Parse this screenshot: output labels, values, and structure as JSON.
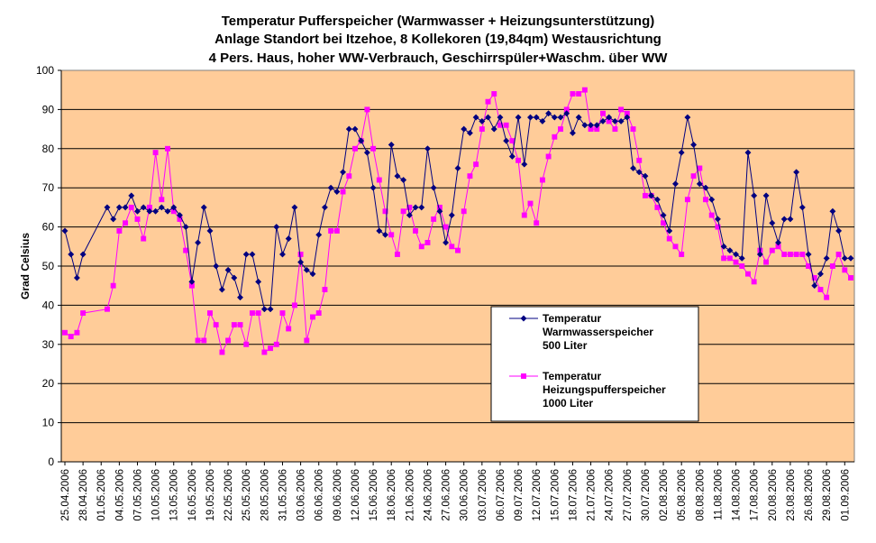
{
  "chart_data": {
    "type": "line",
    "title": [
      "Temperatur Pufferspeicher (Warmwasser + Heizungsunterstützung)",
      "Anlage Standort bei Itzehoe, 8 Kollekoren (19,84qm) Westausrichtung",
      "4 Pers. Haus, hoher WW-Verbrauch, Geschirrspüler+Waschm. über WW"
    ],
    "ylabel": "Grad Celsius",
    "xlabel": "",
    "ylim": [
      0,
      100
    ],
    "yticks": [
      0,
      10,
      20,
      30,
      40,
      50,
      60,
      70,
      80,
      90,
      100
    ],
    "grid": true,
    "legend_position": "lower-center",
    "x_tick_labels": [
      "25.04.2006",
      "28.04.2006",
      "01.05.2006",
      "04.05.2006",
      "07.05.2006",
      "10.05.2006",
      "13.05.2006",
      "16.05.2006",
      "19.05.2006",
      "22.05.2006",
      "25.05.2006",
      "28.05.2006",
      "31.05.2006",
      "03.06.2006",
      "06.06.2006",
      "09.06.2006",
      "12.06.2006",
      "15.06.2006",
      "18.06.2006",
      "21.06.2006",
      "24.06.2006",
      "27.06.2006",
      "30.06.2006",
      "03.07.2006",
      "06.07.2006",
      "09.07.2006",
      "12.07.2006",
      "15.07.2006",
      "18.07.2006",
      "21.07.2006",
      "24.07.2006",
      "27.07.2006",
      "30.07.2006",
      "02.08.2006",
      "05.08.2006",
      "08.08.2006",
      "11.08.2006",
      "14.08.2006",
      "17.08.2006",
      "20.08.2006",
      "23.08.2006",
      "26.08.2006",
      "29.08.2006",
      "01.09.2006"
    ],
    "x_start": "25.04.2006",
    "x_end": "02.09.2006",
    "series": [
      {
        "name": "Temperatur Warmwasserspeicher 500 Liter",
        "color": "#000080",
        "marker": "diamond",
        "points": [
          [
            "25.04.2006",
            59
          ],
          [
            "26.04.2006",
            53
          ],
          [
            "27.04.2006",
            47
          ],
          [
            "28.04.2006",
            53
          ],
          [
            "02.05.2006",
            65
          ],
          [
            "03.05.2006",
            62
          ],
          [
            "04.05.2006",
            65
          ],
          [
            "05.05.2006",
            65
          ],
          [
            "06.05.2006",
            68
          ],
          [
            "07.05.2006",
            64
          ],
          [
            "08.05.2006",
            65
          ],
          [
            "09.05.2006",
            64
          ],
          [
            "10.05.2006",
            64
          ],
          [
            "11.05.2006",
            65
          ],
          [
            "12.05.2006",
            64
          ],
          [
            "13.05.2006",
            65
          ],
          [
            "14.05.2006",
            63
          ],
          [
            "15.05.2006",
            60
          ],
          [
            "16.05.2006",
            46
          ],
          [
            "17.05.2006",
            56
          ],
          [
            "18.05.2006",
            65
          ],
          [
            "19.05.2006",
            59
          ],
          [
            "20.05.2006",
            50
          ],
          [
            "21.05.2006",
            44
          ],
          [
            "22.05.2006",
            49
          ],
          [
            "23.05.2006",
            47
          ],
          [
            "24.05.2006",
            42
          ],
          [
            "25.05.2006",
            53
          ],
          [
            "26.05.2006",
            53
          ],
          [
            "27.05.2006",
            46
          ],
          [
            "28.05.2006",
            39
          ],
          [
            "29.05.2006",
            39
          ],
          [
            "30.05.2006",
            60
          ],
          [
            "31.05.2006",
            53
          ],
          [
            "01.06.2006",
            57
          ],
          [
            "02.06.2006",
            65
          ],
          [
            "03.06.2006",
            51
          ],
          [
            "04.06.2006",
            49
          ],
          [
            "05.06.2006",
            48
          ],
          [
            "06.06.2006",
            58
          ],
          [
            "07.06.2006",
            65
          ],
          [
            "08.06.2006",
            70
          ],
          [
            "09.06.2006",
            69
          ],
          [
            "10.06.2006",
            74
          ],
          [
            "11.06.2006",
            85
          ],
          [
            "12.06.2006",
            85
          ],
          [
            "13.06.2006",
            82
          ],
          [
            "14.06.2006",
            79
          ],
          [
            "15.06.2006",
            70
          ],
          [
            "16.06.2006",
            59
          ],
          [
            "17.06.2006",
            58
          ],
          [
            "18.06.2006",
            81
          ],
          [
            "19.06.2006",
            73
          ],
          [
            "20.06.2006",
            72
          ],
          [
            "21.06.2006",
            63
          ],
          [
            "22.06.2006",
            65
          ],
          [
            "23.06.2006",
            65
          ],
          [
            "24.06.2006",
            80
          ],
          [
            "25.06.2006",
            70
          ],
          [
            "26.06.2006",
            64
          ],
          [
            "27.06.2006",
            56
          ],
          [
            "28.06.2006",
            63
          ],
          [
            "29.06.2006",
            75
          ],
          [
            "30.06.2006",
            85
          ],
          [
            "01.07.2006",
            84
          ],
          [
            "02.07.2006",
            88
          ],
          [
            "03.07.2006",
            87
          ],
          [
            "04.07.2006",
            88
          ],
          [
            "05.07.2006",
            85
          ],
          [
            "06.07.2006",
            88
          ],
          [
            "07.07.2006",
            82
          ],
          [
            "08.07.2006",
            78
          ],
          [
            "09.07.2006",
            88
          ],
          [
            "10.07.2006",
            76
          ],
          [
            "11.07.2006",
            88
          ],
          [
            "12.07.2006",
            88
          ],
          [
            "13.07.2006",
            87
          ],
          [
            "14.07.2006",
            89
          ],
          [
            "15.07.2006",
            88
          ],
          [
            "16.07.2006",
            88
          ],
          [
            "17.07.2006",
            89
          ],
          [
            "18.07.2006",
            84
          ],
          [
            "19.07.2006",
            88
          ],
          [
            "20.07.2006",
            86
          ],
          [
            "21.07.2006",
            86
          ],
          [
            "22.07.2006",
            86
          ],
          [
            "23.07.2006",
            87
          ],
          [
            "24.07.2006",
            88
          ],
          [
            "25.07.2006",
            87
          ],
          [
            "26.07.2006",
            87
          ],
          [
            "27.07.2006",
            88
          ],
          [
            "28.07.2006",
            75
          ],
          [
            "29.07.2006",
            74
          ],
          [
            "30.07.2006",
            73
          ],
          [
            "31.07.2006",
            68
          ],
          [
            "01.08.2006",
            67
          ],
          [
            "02.08.2006",
            63
          ],
          [
            "03.08.2006",
            59
          ],
          [
            "04.08.2006",
            71
          ],
          [
            "05.08.2006",
            79
          ],
          [
            "06.08.2006",
            88
          ],
          [
            "07.08.2006",
            81
          ],
          [
            "08.08.2006",
            71
          ],
          [
            "09.08.2006",
            70
          ],
          [
            "10.08.2006",
            67
          ],
          [
            "11.08.2006",
            62
          ],
          [
            "12.08.2006",
            55
          ],
          [
            "13.08.2006",
            54
          ],
          [
            "14.08.2006",
            53
          ],
          [
            "15.08.2006",
            52
          ],
          [
            "16.08.2006",
            79
          ],
          [
            "17.08.2006",
            68
          ],
          [
            "18.08.2006",
            53
          ],
          [
            "19.08.2006",
            68
          ],
          [
            "20.08.2006",
            61
          ],
          [
            "21.08.2006",
            56
          ],
          [
            "22.08.2006",
            62
          ],
          [
            "23.08.2006",
            62
          ],
          [
            "24.08.2006",
            74
          ],
          [
            "25.08.2006",
            65
          ],
          [
            "26.08.2006",
            53
          ],
          [
            "27.08.2006",
            45
          ],
          [
            "28.08.2006",
            48
          ],
          [
            "29.08.2006",
            52
          ],
          [
            "30.08.2006",
            64
          ],
          [
            "31.08.2006",
            59
          ],
          [
            "01.09.2006",
            52
          ],
          [
            "02.09.2006",
            52
          ]
        ]
      },
      {
        "name": "Temperatur Heizungspufferspeicher 1000 Liter",
        "color": "#FF00FF",
        "marker": "square",
        "points": [
          [
            "25.04.2006",
            33
          ],
          [
            "26.04.2006",
            32
          ],
          [
            "27.04.2006",
            33
          ],
          [
            "28.04.2006",
            38
          ],
          [
            "02.05.2006",
            39
          ],
          [
            "03.05.2006",
            45
          ],
          [
            "04.05.2006",
            59
          ],
          [
            "05.05.2006",
            61
          ],
          [
            "06.05.2006",
            65
          ],
          [
            "07.05.2006",
            62
          ],
          [
            "08.05.2006",
            57
          ],
          [
            "09.05.2006",
            65
          ],
          [
            "10.05.2006",
            79
          ],
          [
            "11.05.2006",
            67
          ],
          [
            "12.05.2006",
            80
          ],
          [
            "13.05.2006",
            64
          ],
          [
            "14.05.2006",
            62
          ],
          [
            "15.05.2006",
            54
          ],
          [
            "16.05.2006",
            45
          ],
          [
            "17.05.2006",
            31
          ],
          [
            "18.05.2006",
            31
          ],
          [
            "19.05.2006",
            38
          ],
          [
            "20.05.2006",
            35
          ],
          [
            "21.05.2006",
            28
          ],
          [
            "22.05.2006",
            31
          ],
          [
            "23.05.2006",
            35
          ],
          [
            "24.05.2006",
            35
          ],
          [
            "25.05.2006",
            30
          ],
          [
            "26.05.2006",
            38
          ],
          [
            "27.05.2006",
            38
          ],
          [
            "28.05.2006",
            28
          ],
          [
            "29.05.2006",
            29
          ],
          [
            "30.05.2006",
            30
          ],
          [
            "31.05.2006",
            38
          ],
          [
            "01.06.2006",
            34
          ],
          [
            "02.06.2006",
            40
          ],
          [
            "03.06.2006",
            53
          ],
          [
            "04.06.2006",
            31
          ],
          [
            "05.06.2006",
            37
          ],
          [
            "06.06.2006",
            38
          ],
          [
            "07.06.2006",
            44
          ],
          [
            "08.06.2006",
            59
          ],
          [
            "09.06.2006",
            59
          ],
          [
            "10.06.2006",
            69
          ],
          [
            "11.06.2006",
            73
          ],
          [
            "12.06.2006",
            80
          ],
          [
            "13.06.2006",
            82
          ],
          [
            "14.06.2006",
            90
          ],
          [
            "15.06.2006",
            80
          ],
          [
            "16.06.2006",
            72
          ],
          [
            "17.06.2006",
            64
          ],
          [
            "18.06.2006",
            58
          ],
          [
            "19.06.2006",
            53
          ],
          [
            "20.06.2006",
            64
          ],
          [
            "21.06.2006",
            65
          ],
          [
            "22.06.2006",
            59
          ],
          [
            "23.06.2006",
            55
          ],
          [
            "24.06.2006",
            56
          ],
          [
            "25.06.2006",
            62
          ],
          [
            "26.06.2006",
            65
          ],
          [
            "27.06.2006",
            60
          ],
          [
            "28.06.2006",
            55
          ],
          [
            "29.06.2006",
            54
          ],
          [
            "30.06.2006",
            64
          ],
          [
            "01.07.2006",
            73
          ],
          [
            "02.07.2006",
            76
          ],
          [
            "03.07.2006",
            85
          ],
          [
            "04.07.2006",
            92
          ],
          [
            "05.07.2006",
            94
          ],
          [
            "06.07.2006",
            86
          ],
          [
            "07.07.2006",
            86
          ],
          [
            "08.07.2006",
            82
          ],
          [
            "09.07.2006",
            77
          ],
          [
            "10.07.2006",
            63
          ],
          [
            "11.07.2006",
            66
          ],
          [
            "12.07.2006",
            61
          ],
          [
            "13.07.2006",
            72
          ],
          [
            "14.07.2006",
            78
          ],
          [
            "15.07.2006",
            83
          ],
          [
            "16.07.2006",
            85
          ],
          [
            "17.07.2006",
            90
          ],
          [
            "18.07.2006",
            94
          ],
          [
            "19.07.2006",
            94
          ],
          [
            "20.07.2006",
            95
          ],
          [
            "21.07.2006",
            85
          ],
          [
            "22.07.2006",
            85
          ],
          [
            "23.07.2006",
            89
          ],
          [
            "24.07.2006",
            87
          ],
          [
            "25.07.2006",
            85
          ],
          [
            "26.07.2006",
            90
          ],
          [
            "27.07.2006",
            89
          ],
          [
            "28.07.2006",
            85
          ],
          [
            "29.07.2006",
            77
          ],
          [
            "30.07.2006",
            68
          ],
          [
            "31.07.2006",
            68
          ],
          [
            "01.08.2006",
            65
          ],
          [
            "02.08.2006",
            61
          ],
          [
            "03.08.2006",
            57
          ],
          [
            "04.08.2006",
            55
          ],
          [
            "05.08.2006",
            53
          ],
          [
            "06.08.2006",
            67
          ],
          [
            "07.08.2006",
            73
          ],
          [
            "08.08.2006",
            75
          ],
          [
            "09.08.2006",
            67
          ],
          [
            "10.08.2006",
            63
          ],
          [
            "11.08.2006",
            60
          ],
          [
            "12.08.2006",
            52
          ],
          [
            "13.08.2006",
            52
          ],
          [
            "14.08.2006",
            51
          ],
          [
            "15.08.2006",
            50
          ],
          [
            "16.08.2006",
            48
          ],
          [
            "17.08.2006",
            46
          ],
          [
            "18.08.2006",
            54
          ],
          [
            "19.08.2006",
            51
          ],
          [
            "20.08.2006",
            54
          ],
          [
            "21.08.2006",
            55
          ],
          [
            "22.08.2006",
            53
          ],
          [
            "23.08.2006",
            53
          ],
          [
            "24.08.2006",
            53
          ],
          [
            "25.08.2006",
            53
          ],
          [
            "26.08.2006",
            50
          ],
          [
            "27.08.2006",
            47
          ],
          [
            "28.08.2006",
            44
          ],
          [
            "29.08.2006",
            42
          ],
          [
            "30.08.2006",
            50
          ],
          [
            "31.08.2006",
            53
          ],
          [
            "01.09.2006",
            49
          ],
          [
            "02.09.2006",
            47
          ]
        ]
      }
    ],
    "legend": [
      {
        "lines": [
          "Temperatur",
          "Warmwasserspeicher",
          "500 Liter"
        ],
        "color": "#000080",
        "marker": "diamond"
      },
      {
        "lines": [
          "Temperatur",
          "Heizungspufferspeicher",
          "1000 Liter"
        ],
        "color": "#FF00FF",
        "marker": "square"
      }
    ],
    "colors": {
      "plot_background": "#FFCC99",
      "gridline": "#000000"
    }
  }
}
